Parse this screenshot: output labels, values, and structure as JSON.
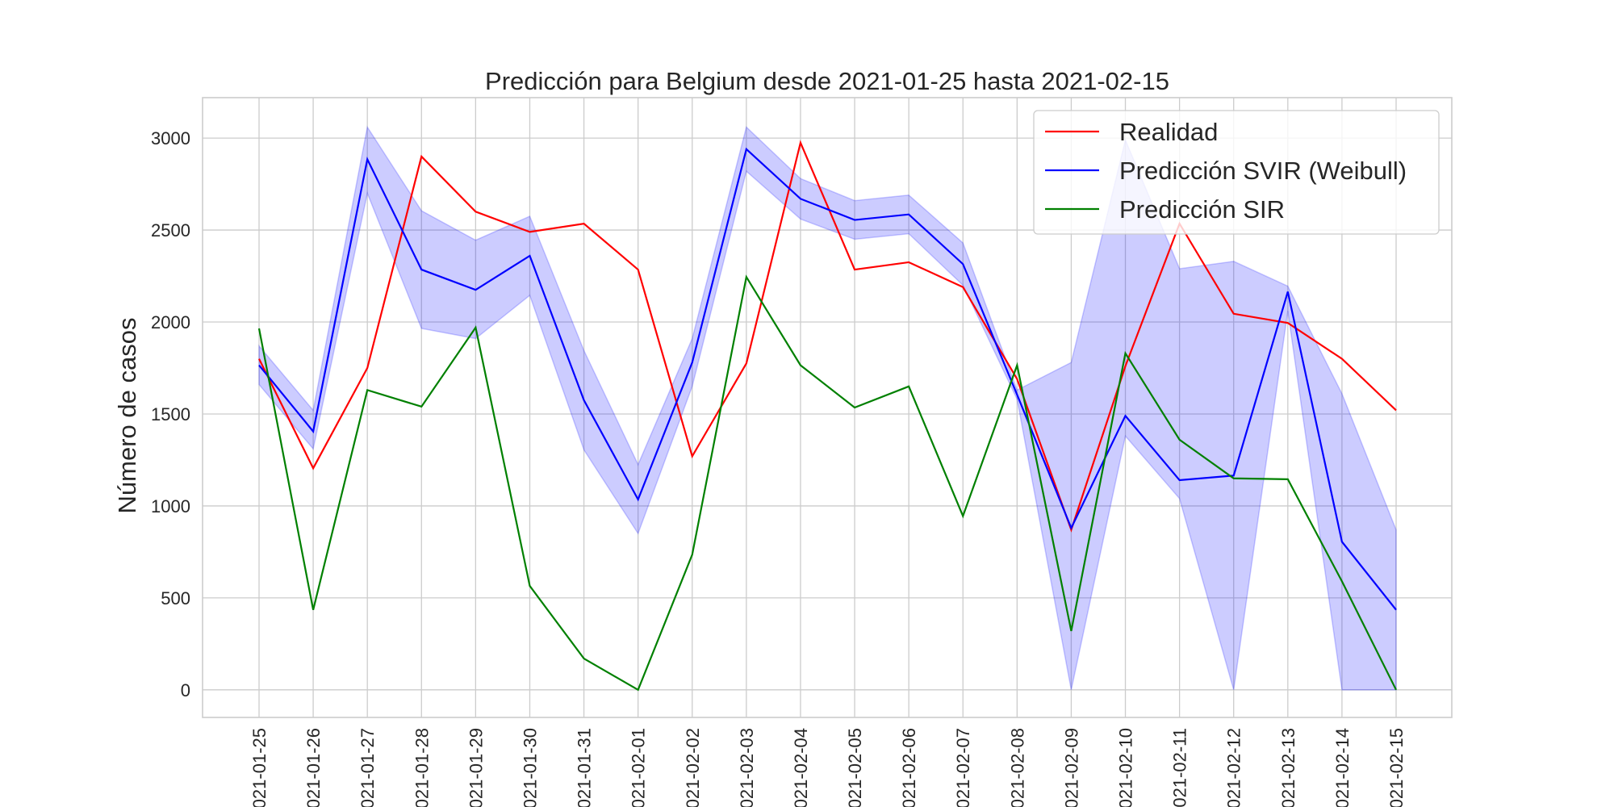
{
  "chart_data": {
    "type": "line",
    "title": "Predicción para Belgium desde 2021-01-25 hasta 2021-02-15",
    "xlabel": "",
    "ylabel": "Número de casos",
    "x": [
      "2021-01-25",
      "2021-01-26",
      "2021-01-27",
      "2021-01-28",
      "2021-01-29",
      "2021-01-30",
      "2021-01-31",
      "2021-02-01",
      "2021-02-02",
      "2021-02-03",
      "2021-02-04",
      "2021-02-05",
      "2021-02-06",
      "2021-02-07",
      "2021-02-08",
      "2021-02-09",
      "2021-02-10",
      "2021-02-11",
      "2021-02-12",
      "2021-02-13",
      "2021-02-14",
      "2021-02-15"
    ],
    "ylim": [
      -150,
      3220
    ],
    "yticks": [
      0,
      500,
      1000,
      1500,
      2000,
      2500,
      3000
    ],
    "grid": true,
    "legend_position": "top-right",
    "series": [
      {
        "name": "Realidad",
        "color": "#ff0000",
        "values": [
          1800,
          1205,
          1750,
          2900,
          2600,
          2490,
          2535,
          2285,
          1270,
          1775,
          2975,
          2285,
          2325,
          2190,
          1690,
          870,
          1760,
          2535,
          2045,
          1995,
          1800,
          1520
        ]
      },
      {
        "name": "Predicción SVIR (Weibull)",
        "color": "#0000ff",
        "values": [
          1765,
          1405,
          2885,
          2285,
          2175,
          2360,
          1575,
          1035,
          1780,
          2940,
          2670,
          2555,
          2585,
          2315,
          1605,
          880,
          1490,
          1140,
          1165,
          2165,
          805,
          435
        ],
        "band_color": "#0000ff",
        "band_lower": [
          1660,
          1310,
          2700,
          1965,
          1910,
          2145,
          1305,
          850,
          1650,
          2820,
          2560,
          2450,
          2480,
          2200,
          1580,
          0,
          1380,
          1040,
          0,
          2060,
          0,
          0
        ],
        "band_upper": [
          1870,
          1520,
          3060,
          2605,
          2445,
          2575,
          1845,
          1225,
          1910,
          3060,
          2780,
          2660,
          2690,
          2430,
          1630,
          1780,
          2990,
          2290,
          2330,
          2195,
          1610,
          870
        ]
      },
      {
        "name": "Predicción SIR",
        "color": "#008000",
        "values": [
          1965,
          435,
          1630,
          1540,
          1970,
          565,
          170,
          0,
          735,
          2245,
          1765,
          1535,
          1650,
          945,
          1765,
          320,
          1830,
          1360,
          1150,
          1145,
          590,
          0
        ]
      }
    ]
  }
}
